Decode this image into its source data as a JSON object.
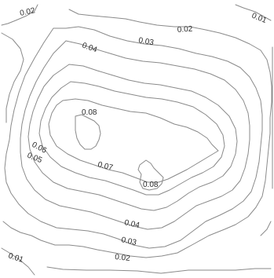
{
  "contour_labels": {
    "l_002_top_left": "0.02",
    "l_001_top_right": "0.01",
    "l_002_top": "0.02",
    "l_003_top": "0.03",
    "l_004_top": "0.04",
    "l_008_upper": "0.08",
    "l_006_left": "0.06",
    "l_005_left": "0.05",
    "l_007_mid": "0.07",
    "l_008_lower": "0.08",
    "l_004_bottom": "0.04",
    "l_003_bottom": "0.03",
    "l_002_bottom": "0.02",
    "l_001_bottom_left": "0.01"
  },
  "colors": {
    "background": "#ffffff",
    "contour_line": "#8a8a8a",
    "label_text": "#2b2b2b"
  }
}
